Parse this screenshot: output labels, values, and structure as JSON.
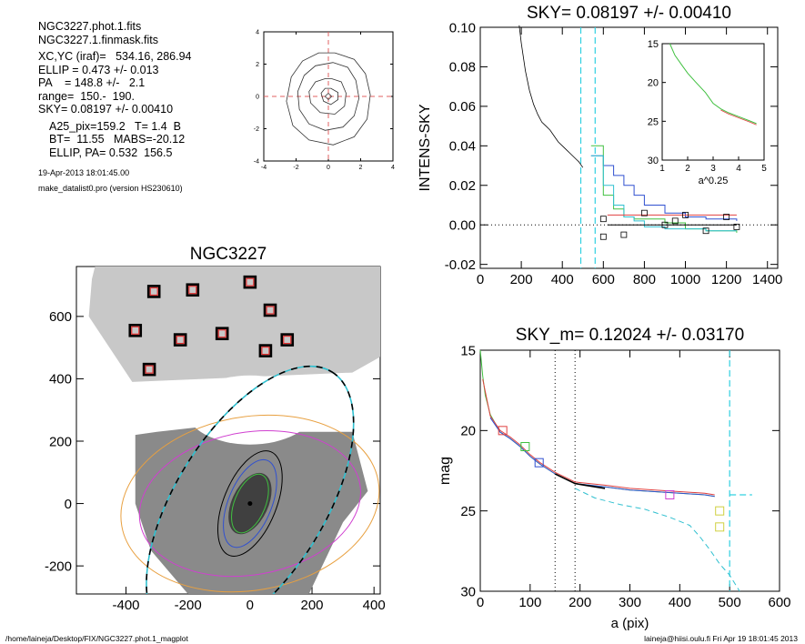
{
  "info": {
    "file_phot": "NGC3227.phot.1.fits",
    "file_mask": "NGC3227.1.finmask.fits",
    "xcyc": "XC,YC (iraf)=   534.16, 286.94",
    "ellip": "ELLIP = 0.473 +/- 0.013",
    "pa": "PA    = 148.8 +/-   2.1",
    "range": "range=  150.-  190.",
    "sky": "SKY= 0.08197 +/- 0.00410",
    "a25": "A25_pix=159.2   T= 1.4  B",
    "bt": "BT=  11.55   MABS=-20.12",
    "ellip_pa": "ELLIP, PA= 0.532  156.5",
    "date": "19-Apr-2013 18:01:45.00",
    "program": "make_datalist0.pro (version HS230610)"
  },
  "footer": {
    "left": "/home/laineja/Desktop/FIX/NGC3227.phot.1_magplot",
    "right": "laineja@hiisi.oulu.fi  Fri Apr 19 18:01:45 2013"
  },
  "chart_data": [
    {
      "id": "contour",
      "type": "contour",
      "title": "",
      "xlim": [
        -4,
        4
      ],
      "ylim": [
        -4,
        4
      ],
      "xticks": [
        -4,
        -2,
        0,
        2,
        4
      ],
      "yticks": [
        -4,
        -2,
        0,
        2,
        4
      ],
      "contours_xy": [
        [
          [
            0,
            0.2
          ],
          [
            0.2,
            0
          ],
          [
            0,
            -0.2
          ],
          [
            -0.2,
            0
          ]
        ],
        [
          [
            0.15,
            0.5
          ],
          [
            0.6,
            0.25
          ],
          [
            0.6,
            -0.2
          ],
          [
            0.15,
            -0.5
          ],
          [
            -0.3,
            -0.3
          ],
          [
            -0.45,
            0.2
          ],
          [
            -0.2,
            0.5
          ]
        ],
        [
          [
            0.2,
            1.1
          ],
          [
            0.8,
            0.9
          ],
          [
            1.1,
            0.2
          ],
          [
            1.0,
            -0.6
          ],
          [
            0.4,
            -1.1
          ],
          [
            -0.5,
            -1.0
          ],
          [
            -1.1,
            -0.4
          ],
          [
            -1.2,
            0.3
          ],
          [
            -0.8,
            0.9
          ],
          [
            -0.2,
            1.1
          ]
        ],
        [
          [
            0.3,
            2.1
          ],
          [
            1.2,
            1.8
          ],
          [
            1.7,
            1.0
          ],
          [
            1.9,
            -0.1
          ],
          [
            1.6,
            -1.2
          ],
          [
            0.9,
            -1.9
          ],
          [
            -0.2,
            -2.1
          ],
          [
            -1.2,
            -1.7
          ],
          [
            -1.8,
            -0.8
          ],
          [
            -1.9,
            0.3
          ],
          [
            -1.5,
            1.3
          ],
          [
            -0.8,
            1.9
          ]
        ],
        [
          [
            0.4,
            2.7
          ],
          [
            1.6,
            2.3
          ],
          [
            2.3,
            1.4
          ],
          [
            2.6,
            0.1
          ],
          [
            2.4,
            -1.4
          ],
          [
            1.6,
            -2.5
          ],
          [
            0.3,
            -3.0
          ],
          [
            -1.2,
            -2.7
          ],
          [
            -2.2,
            -1.8
          ],
          [
            -2.6,
            -0.3
          ],
          [
            -2.3,
            1.2
          ],
          [
            -1.6,
            2.2
          ],
          [
            -0.6,
            2.7
          ]
        ]
      ]
    },
    {
      "id": "image",
      "type": "scatter",
      "title": "NGC3227",
      "xlim": [
        -560,
        420
      ],
      "ylim": [
        -290,
        760
      ],
      "xticks": [
        -400,
        -200,
        0,
        200,
        400
      ],
      "yticks": [
        -200,
        0,
        200,
        400,
        600
      ],
      "sky_boxes": [
        [
          -310,
          680
        ],
        [
          -185,
          685
        ],
        [
          0,
          710
        ],
        [
          65,
          620
        ],
        [
          -370,
          555
        ],
        [
          -225,
          525
        ],
        [
          -90,
          545
        ],
        [
          50,
          490
        ],
        [
          120,
          525
        ],
        [
          -325,
          430
        ]
      ],
      "ellipses": [
        {
          "a": 420,
          "b": 280,
          "pa": 10,
          "color": "#e8a040"
        },
        {
          "a": 360,
          "b": 230,
          "pa": 10,
          "color": "#d040d0"
        },
        {
          "a": 500,
          "b": 240,
          "pa": 58,
          "color": "#30c0d0",
          "dashed": true
        },
        {
          "a": 180,
          "b": 85,
          "pa": 68,
          "color": "#000000"
        },
        {
          "a": 150,
          "b": 70,
          "pa": 68,
          "color": "#3050d0"
        },
        {
          "a": 100,
          "b": 50,
          "pa": 68,
          "color": "#40c040"
        }
      ]
    },
    {
      "id": "sky",
      "type": "line",
      "title": "SKY= 0.08197 +/- 0.00410",
      "xlabel": "",
      "ylabel": "INTENS-SKY",
      "xlim": [
        0,
        1450
      ],
      "ylim": [
        -0.022,
        0.1
      ],
      "xticks": [
        0,
        200,
        400,
        600,
        800,
        1000,
        1200,
        1400
      ],
      "yticks": [
        -0.02,
        0.0,
        0.02,
        0.04,
        0.06,
        0.08,
        0.1
      ],
      "ytick_labels": [
        "-0.02",
        "0.00",
        "0.02",
        "0.04",
        "0.06",
        "0.08",
        "0.10"
      ],
      "x": [
        190,
        200,
        220,
        240,
        260,
        280,
        300,
        320,
        340,
        360,
        380,
        400,
        420,
        440,
        460,
        480,
        500
      ],
      "y": [
        0.101,
        0.092,
        0.078,
        0.068,
        0.061,
        0.056,
        0.052,
        0.05,
        0.048,
        0.045,
        0.042,
        0.04,
        0.038,
        0.036,
        0.034,
        0.032,
        0.029
      ],
      "sky_level": 0.08197,
      "vlines_dashed": [
        490,
        560
      ],
      "steps": [
        {
          "color": "#3050d0",
          "x": [
            540,
            600,
            650,
            700,
            750,
            800,
            900,
            1000,
            1100,
            1250
          ],
          "y": [
            0.035,
            0.03,
            0.025,
            0.02,
            0.015,
            0.01,
            0.006,
            0.004,
            0.003,
            0.002
          ]
        },
        {
          "color": "#40c040",
          "x": [
            540,
            600,
            650,
            700,
            750,
            800,
            900,
            1000,
            1100,
            1250
          ],
          "y": [
            0.04,
            0.015,
            0.008,
            0.004,
            0.003,
            0.003,
            0.001,
            -0.002,
            -0.003,
            -0.004
          ]
        },
        {
          "color": "#30c0d0",
          "x": [
            540,
            600,
            650,
            700,
            750,
            800,
            900,
            1000,
            1100,
            1250
          ],
          "y": [
            0.035,
            0.02,
            0.01,
            0.004,
            0.002,
            -0.001,
            -0.002,
            -0.002,
            -0.003,
            -0.003
          ]
        },
        {
          "color": "#e04040",
          "x": [
            620,
            1250
          ],
          "y": [
            0.005,
            0.005
          ]
        },
        {
          "color": "#000000",
          "x": [
            620,
            1250
          ],
          "y": [
            0.0,
            0.0
          ]
        }
      ],
      "markers": [
        [
          600,
          -0.006
        ],
        [
          600,
          0.003
        ],
        [
          700,
          -0.005
        ],
        [
          800,
          0.006
        ],
        [
          900,
          0.0
        ],
        [
          950,
          0.002
        ],
        [
          1000,
          0.005
        ],
        [
          1100,
          -0.003
        ],
        [
          1200,
          0.004
        ],
        [
          1250,
          -0.001
        ]
      ],
      "inset": {
        "xlabel": "a^0.25",
        "xlim": [
          1,
          5
        ],
        "ylim": [
          15,
          30
        ],
        "xticks": [
          1,
          2,
          3,
          4,
          5
        ],
        "yticks": [
          15,
          20,
          25,
          30
        ],
        "x": [
          1.3,
          1.5,
          1.8,
          2.0,
          2.3,
          2.7,
          3.0,
          3.3,
          3.6,
          4.0,
          4.4,
          4.7
        ],
        "y": [
          15.0,
          16.5,
          17.9,
          18.8,
          19.9,
          21.3,
          22.7,
          23.4,
          23.9,
          24.4,
          24.9,
          25.3
        ]
      }
    },
    {
      "id": "profile",
      "type": "line",
      "title": "SKY_m=  0.12024 +/- 0.03170",
      "xlabel": "a (pix)",
      "ylabel": "mag",
      "xlim": [
        0,
        600
      ],
      "ylim": [
        30,
        15
      ],
      "xticks": [
        0,
        100,
        200,
        300,
        400,
        500,
        600
      ],
      "yticks": [
        15,
        20,
        25,
        30
      ],
      "vlines_dotted": [
        150,
        190
      ],
      "vlines_dashed": [
        500
      ],
      "series": [
        {
          "color": "#40c040",
          "x": [
            0,
            5,
            10,
            20,
            40,
            60,
            80,
            100,
            120,
            150,
            190,
            250,
            300,
            350,
            400,
            450,
            470
          ],
          "y": [
            15.0,
            16.6,
            17.8,
            19.0,
            20.1,
            20.5,
            21.0,
            21.6,
            22.1,
            22.7,
            23.3,
            23.5,
            23.7,
            23.8,
            23.9,
            24.0,
            24.1
          ]
        },
        {
          "color": "#e04040",
          "x": [
            5,
            20,
            40,
            60,
            80,
            100,
            120,
            150,
            190,
            250,
            300,
            350,
            400,
            450,
            470
          ],
          "y": [
            16.8,
            19.1,
            20.0,
            20.4,
            20.9,
            21.5,
            22.0,
            22.6,
            23.2,
            23.4,
            23.6,
            23.7,
            23.8,
            23.9,
            24.0
          ]
        },
        {
          "color": "#3050d0",
          "x": [
            20,
            40,
            60,
            80,
            100,
            120,
            150,
            190,
            250,
            300,
            350,
            400,
            450,
            470
          ],
          "y": [
            19.2,
            20.1,
            20.5,
            21.0,
            21.6,
            22.1,
            22.7,
            23.3,
            23.5,
            23.7,
            23.8,
            23.9,
            24.0,
            24.1
          ]
        },
        {
          "color": "#000000",
          "x": [
            150,
            170,
            190,
            210,
            230,
            250
          ],
          "y": [
            22.7,
            23.0,
            23.3,
            23.4,
            23.5,
            23.6
          ]
        },
        {
          "color": "#30c0d0",
          "dashed": true,
          "x": [
            190,
            230,
            280,
            330,
            380,
            420,
            440,
            460,
            480,
            500,
            520
          ],
          "y": [
            23.6,
            24.2,
            24.6,
            24.9,
            25.4,
            25.9,
            26.6,
            27.4,
            28.3,
            29.0,
            30.0
          ]
        }
      ],
      "boxes": [
        [
          45,
          20.0,
          "#e04040"
        ],
        [
          90,
          21.0,
          "#40c040"
        ],
        [
          118,
          22.0,
          "#3050d0"
        ],
        [
          380,
          24.0,
          "#d040d0"
        ],
        [
          480,
          25.0,
          "#d0d040"
        ],
        [
          480,
          26.0,
          "#d0d040"
        ]
      ],
      "sky_mark": {
        "x": [
          500,
          545
        ],
        "y": 24.0
      }
    }
  ]
}
